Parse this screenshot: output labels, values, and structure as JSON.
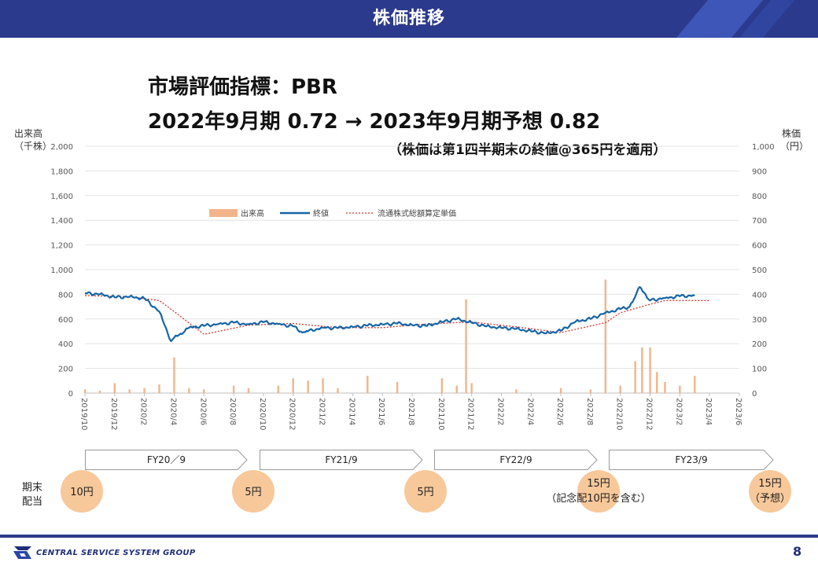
{
  "header": {
    "title": "株価推移"
  },
  "headline": {
    "line1": "市場評価指標：PBR",
    "line2": "2022年9月期 0.72 → 2023年9月期予想 0.82",
    "note": "（株価は第1四半期末の終値@365円を適用）"
  },
  "axis_titles": {
    "left": [
      "出来高",
      "（千株）"
    ],
    "right": [
      "株価",
      "（円）"
    ]
  },
  "chart_data": {
    "type": "bar+line",
    "y_left": {
      "range": [
        0,
        2000
      ],
      "ticks": [
        "2,000",
        "1,800",
        "1,600",
        "1,400",
        "1,200",
        "1,000",
        "800",
        "600",
        "400",
        "200",
        "0"
      ]
    },
    "y_right": {
      "range": [
        0,
        1000
      ],
      "ticks": [
        "1,000",
        "900",
        "800",
        "700",
        "600",
        "500",
        "400",
        "300",
        "200",
        "100",
        "0"
      ]
    },
    "x_range": [
      "2019/10",
      "2023/6"
    ],
    "x_ticks": [
      "2019/10",
      "2019/12",
      "2020/2",
      "2020/4",
      "2020/6",
      "2020/8",
      "2020/10",
      "2020/12",
      "2021/2",
      "2021/4",
      "2021/6",
      "2021/8",
      "2021/10",
      "2021/12",
      "2022/2",
      "2022/4",
      "2022/6",
      "2022/8",
      "2022/10",
      "2022/12",
      "2023/2",
      "2023/4",
      "2023/6"
    ],
    "legend": {
      "position": "top-center",
      "items": [
        "出来高",
        "終値",
        "流通株式総額算定単価"
      ]
    },
    "colors": {
      "volume": "#f2b48a",
      "close": "#1565a6",
      "reference": "#d9342b"
    },
    "series": [
      {
        "name": "終値",
        "axis": "right",
        "points": [
          [
            "2019/10",
            405
          ],
          [
            "2019/11",
            400
          ],
          [
            "2019/12",
            388
          ],
          [
            "2020/1",
            390
          ],
          [
            "2020/2",
            383
          ],
          [
            "2020/3",
            330
          ],
          [
            "2020/3/25",
            210
          ],
          [
            "2020/4",
            225
          ],
          [
            "2020/4/20",
            245
          ],
          [
            "2020/5",
            265
          ],
          [
            "2020/6",
            272
          ],
          [
            "2020/7",
            280
          ],
          [
            "2020/8",
            285
          ],
          [
            "2020/9",
            278
          ],
          [
            "2020/10",
            287
          ],
          [
            "2020/11",
            280
          ],
          [
            "2020/12",
            270
          ],
          [
            "2020/12/20",
            245
          ],
          [
            "2021/1",
            250
          ],
          [
            "2021/2",
            265
          ],
          [
            "2021/3",
            263
          ],
          [
            "2021/4",
            268
          ],
          [
            "2021/5",
            273
          ],
          [
            "2021/6",
            278
          ],
          [
            "2021/7",
            282
          ],
          [
            "2021/8",
            275
          ],
          [
            "2021/9",
            272
          ],
          [
            "2021/10",
            288
          ],
          [
            "2021/11",
            300
          ],
          [
            "2021/12",
            285
          ],
          [
            "2022/1",
            270
          ],
          [
            "2022/2",
            264
          ],
          [
            "2022/3",
            260
          ],
          [
            "2022/4",
            250
          ],
          [
            "2022/5",
            242
          ],
          [
            "2022/6",
            252
          ],
          [
            "2022/7",
            290
          ],
          [
            "2022/8",
            300
          ],
          [
            "2022/9",
            325
          ],
          [
            "2022/10",
            340
          ],
          [
            "2022/10/20",
            350
          ],
          [
            "2022/11",
            390
          ],
          [
            "2022/11/10",
            430
          ],
          [
            "2022/12",
            375
          ],
          [
            "2023/1",
            385
          ],
          [
            "2023/2",
            392
          ],
          [
            "2023/3",
            395
          ]
        ]
      },
      {
        "name": "流通株式総額算定単価",
        "axis": "right",
        "points": [
          [
            "2019/10",
            395
          ],
          [
            "2020/1",
            390
          ],
          [
            "2020/3",
            375
          ],
          [
            "2020/4",
            330
          ],
          [
            "2020/6",
            238
          ],
          [
            "2020/9",
            275
          ],
          [
            "2020/12",
            282
          ],
          [
            "2021/3",
            265
          ],
          [
            "2021/6",
            265
          ],
          [
            "2021/9",
            280
          ],
          [
            "2021/12",
            288
          ],
          [
            "2022/3",
            268
          ],
          [
            "2022/6",
            245
          ],
          [
            "2022/9",
            285
          ],
          [
            "2022/10",
            325
          ],
          [
            "2022/12",
            360
          ],
          [
            "2023/1",
            375
          ],
          [
            "2023/4",
            375
          ]
        ]
      },
      {
        "name": "出来高",
        "axis": "left",
        "bars": [
          [
            "2019/10",
            30
          ],
          [
            "2019/11",
            20
          ],
          [
            "2019/12",
            80
          ],
          [
            "2020/1",
            30
          ],
          [
            "2020/2",
            40
          ],
          [
            "2020/3",
            70
          ],
          [
            "2020/4",
            290
          ],
          [
            "2020/5",
            40
          ],
          [
            "2020/6",
            30
          ],
          [
            "2020/8",
            60
          ],
          [
            "2020/9",
            40
          ],
          [
            "2020/11",
            60
          ],
          [
            "2020/12",
            120
          ],
          [
            "2021/1",
            100
          ],
          [
            "2021/2",
            120
          ],
          [
            "2021/3",
            40
          ],
          [
            "2021/5",
            140
          ],
          [
            "2021/7",
            90
          ],
          [
            "2021/10",
            120
          ],
          [
            "2021/11",
            60
          ],
          [
            "2021/11/20",
            760
          ],
          [
            "2021/12",
            80
          ],
          [
            "2022/3",
            30
          ],
          [
            "2022/6",
            40
          ],
          [
            "2022/8",
            30
          ],
          [
            "2022/9",
            920
          ],
          [
            "2022/10",
            60
          ],
          [
            "2022/11",
            260
          ],
          [
            "2022/11/15",
            370
          ],
          [
            "2022/12",
            370
          ],
          [
            "2022/12/15",
            170
          ],
          [
            "2023/1",
            90
          ],
          [
            "2023/2",
            60
          ],
          [
            "2023/3",
            140
          ]
        ]
      }
    ]
  },
  "fiscal_years": [
    {
      "label": "FY20／9"
    },
    {
      "label": "FY21/9"
    },
    {
      "label": "FY22/9"
    },
    {
      "label": "FY23/9"
    }
  ],
  "dividends": {
    "label": [
      "期末",
      "配当"
    ],
    "items": [
      {
        "lines": [
          "10円"
        ]
      },
      {
        "lines": [
          "5円"
        ]
      },
      {
        "lines": [
          "5円"
        ]
      },
      {
        "lines": [
          "15円",
          "（記念配10円を含む）"
        ]
      },
      {
        "lines": [
          "15円",
          "（予想）"
        ]
      }
    ]
  },
  "footer": {
    "company": "CENTRAL SERVICE SYSTEM GROUP",
    "page": "8"
  }
}
